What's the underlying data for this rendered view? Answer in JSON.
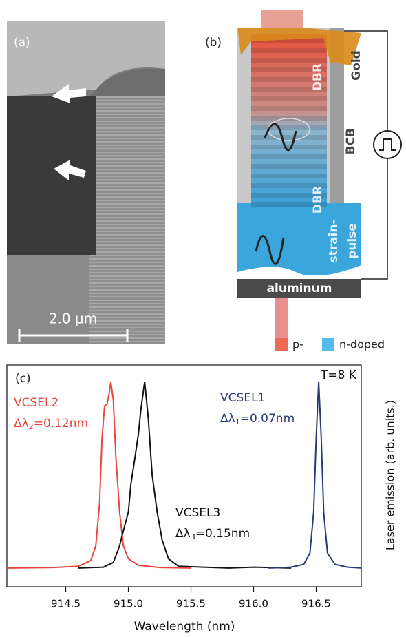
{
  "panel_a": {
    "label": "(a)",
    "scale_bar": "2.0 µm"
  },
  "panel_b": {
    "label": "(b)",
    "labels": [
      "DBR",
      "Gold",
      "BCB",
      "DBR",
      "strain-",
      "pulse",
      "aluminum"
    ],
    "legend": [
      {
        "name": "p-",
        "color": "#ee6a55"
      },
      {
        "name": "n-doped",
        "color": "#55bde8"
      }
    ]
  },
  "chart_data": {
    "type": "line",
    "panel_label": "(c)",
    "annotation": "T=8 K",
    "x_label": "Wavelength (nm)",
    "y_label": "Laser emission (arb. units.)",
    "xlim": [
      914.03,
      916.86
    ],
    "ylim": [
      -0.1,
      1.09
    ],
    "xticks": [
      914.5,
      {
        "value": 915,
        "label": "915.0"
      },
      915.5,
      {
        "value": 916,
        "label": "916.0"
      },
      916.5
    ],
    "series": [
      {
        "name": "VCSEL2",
        "color": "#e8453c",
        "linewidth": {
          "prefix": "Δλ",
          "sub": "2",
          "suffix": "=0.12nm"
        },
        "x": [
          914.03,
          914.4,
          914.6,
          914.7,
          914.74,
          914.77,
          914.79,
          914.81,
          914.83,
          914.85,
          914.86,
          914.88,
          914.9,
          914.93,
          914.96,
          915.0,
          915.08,
          915.25,
          915.5
        ],
        "values": [
          0,
          0.003,
          0.01,
          0.04,
          0.12,
          0.35,
          0.7,
          0.87,
          0.88,
          0.95,
          1.0,
          0.9,
          0.6,
          0.3,
          0.12,
          0.05,
          0.015,
          0.003,
          0
        ]
      },
      {
        "name": "VCSEL3",
        "color": "#111111",
        "linewidth": {
          "prefix": "Δλ",
          "sub": "3",
          "suffix": "=0.15nm"
        },
        "x": [
          914.6,
          914.8,
          914.88,
          914.93,
          914.96,
          915.0,
          915.02,
          915.05,
          915.08,
          915.1,
          915.13,
          915.16,
          915.19,
          915.23,
          915.27,
          915.32,
          915.4,
          915.6,
          915.8,
          916.0,
          916.3
        ],
        "values": [
          0,
          0.005,
          0.03,
          0.12,
          0.2,
          0.3,
          0.45,
          0.58,
          0.72,
          0.85,
          1.0,
          0.8,
          0.5,
          0.3,
          0.15,
          0.05,
          0.01,
          0.005,
          0,
          0.005,
          0
        ]
      },
      {
        "name": "VCSEL1",
        "color": "#2a3a78",
        "linewidth": {
          "prefix": "Δλ",
          "sub": "1",
          "suffix": "=0.07nm"
        },
        "x": [
          916.12,
          916.3,
          916.4,
          916.45,
          916.48,
          916.5,
          916.52,
          916.54,
          916.56,
          916.59,
          916.65,
          916.75,
          916.86
        ],
        "values": [
          0,
          0.005,
          0.02,
          0.08,
          0.3,
          0.7,
          1.0,
          0.7,
          0.3,
          0.08,
          0.02,
          0.005,
          0
        ]
      }
    ]
  }
}
